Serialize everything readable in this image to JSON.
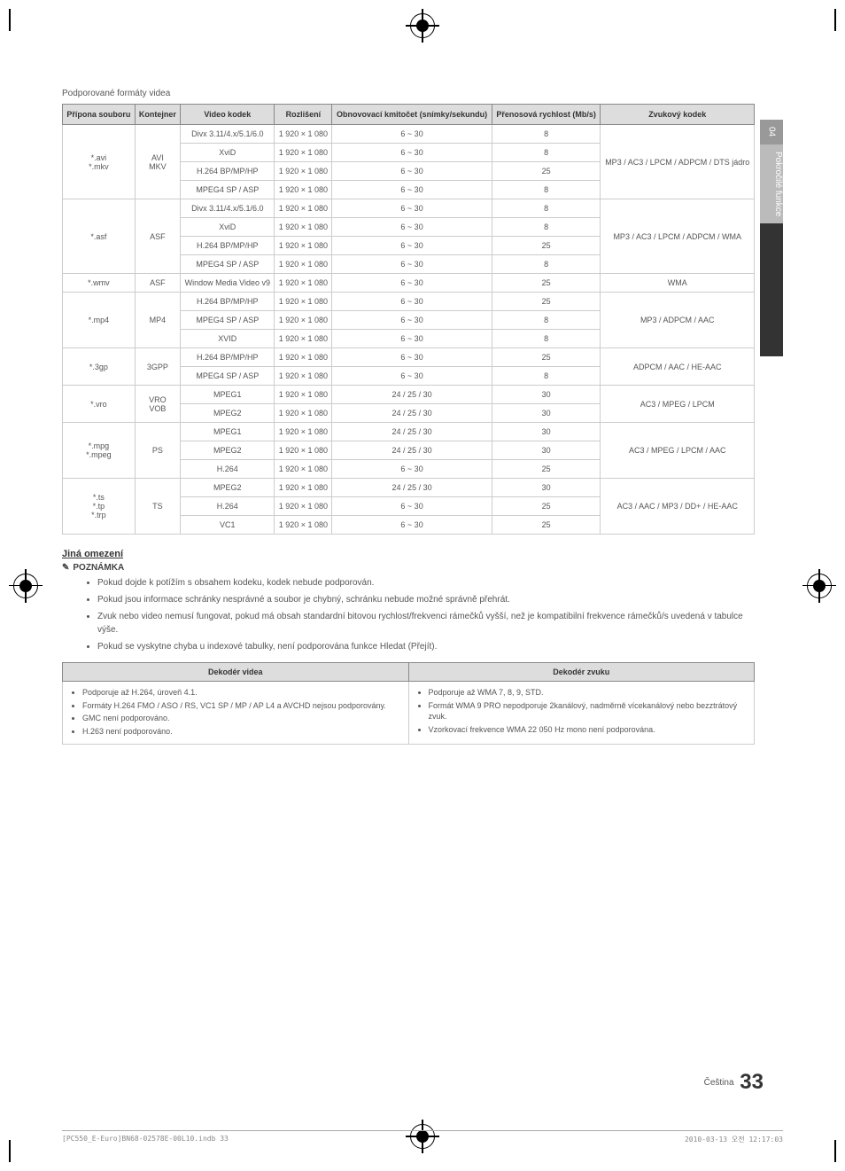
{
  "sideTab": {
    "num": "04",
    "label": "Pokročilé funkce"
  },
  "caption": "Podporované formáty videa",
  "headers": {
    "ext": "Přípona souboru",
    "container": "Kontejner",
    "vcodec": "Video kodek",
    "res": "Rozlišení",
    "fps": "Obnovovací kmitočet (snímky/sekundu)",
    "bitrate": "Přenosová rychlost (Mb/s)",
    "acodec": "Zvukový kodek"
  },
  "groups": [
    {
      "ext": "*.avi\n*.mkv",
      "container": "AVI\nMKV",
      "acodec": "MP3 / AC3 / LPCM / ADPCM / DTS jádro",
      "rows": [
        {
          "v": "Divx 3.11/4.x/5.1/6.0",
          "r": "1 920 × 1 080",
          "f": "6 ~ 30",
          "b": "8"
        },
        {
          "v": "XviD",
          "r": "1 920 × 1 080",
          "f": "6 ~ 30",
          "b": "8"
        },
        {
          "v": "H.264 BP/MP/HP",
          "r": "1 920 × 1 080",
          "f": "6 ~ 30",
          "b": "25"
        },
        {
          "v": "MPEG4 SP / ASP",
          "r": "1 920 × 1 080",
          "f": "6 ~ 30",
          "b": "8"
        }
      ]
    },
    {
      "ext": "*.asf",
      "container": "ASF",
      "acodec": "MP3 / AC3 / LPCM / ADPCM / WMA",
      "rows": [
        {
          "v": "Divx 3.11/4.x/5.1/6.0",
          "r": "1 920 × 1 080",
          "f": "6 ~ 30",
          "b": "8"
        },
        {
          "v": "XviD",
          "r": "1 920 × 1 080",
          "f": "6 ~ 30",
          "b": "8"
        },
        {
          "v": "H.264 BP/MP/HP",
          "r": "1 920 × 1 080",
          "f": "6 ~ 30",
          "b": "25"
        },
        {
          "v": "MPEG4 SP / ASP",
          "r": "1 920 × 1 080",
          "f": "6 ~ 30",
          "b": "8"
        }
      ]
    },
    {
      "ext": "*.wmv",
      "container": "ASF",
      "acodec": "WMA",
      "rows": [
        {
          "v": "Window Media Video v9",
          "r": "1 920 × 1 080",
          "f": "6 ~ 30",
          "b": "25"
        }
      ]
    },
    {
      "ext": "*.mp4",
      "container": "MP4",
      "acodec": "MP3 / ADPCM / AAC",
      "rows": [
        {
          "v": "H.264 BP/MP/HP",
          "r": "1 920 × 1 080",
          "f": "6 ~ 30",
          "b": "25"
        },
        {
          "v": "MPEG4 SP / ASP",
          "r": "1 920 × 1 080",
          "f": "6 ~ 30",
          "b": "8"
        },
        {
          "v": "XVID",
          "r": "1 920 × 1 080",
          "f": "6 ~ 30",
          "b": "8"
        }
      ]
    },
    {
      "ext": "*.3gp",
      "container": "3GPP",
      "acodec": "ADPCM / AAC / HE-AAC",
      "rows": [
        {
          "v": "H.264 BP/MP/HP",
          "r": "1 920 × 1 080",
          "f": "6 ~ 30",
          "b": "25"
        },
        {
          "v": "MPEG4 SP / ASP",
          "r": "1 920 × 1 080",
          "f": "6 ~ 30",
          "b": "8"
        }
      ]
    },
    {
      "ext": "*.vro",
      "container": "VRO\nVOB",
      "acodec": "AC3 / MPEG / LPCM",
      "rows": [
        {
          "v": "MPEG1",
          "r": "1 920 × 1 080",
          "f": "24 / 25 / 30",
          "b": "30"
        },
        {
          "v": "MPEG2",
          "r": "1 920 × 1 080",
          "f": "24 / 25 / 30",
          "b": "30"
        }
      ]
    },
    {
      "ext": "*.mpg\n*.mpeg",
      "container": "PS",
      "acodec": "AC3 / MPEG / LPCM / AAC",
      "rows": [
        {
          "v": "MPEG1",
          "r": "1 920 × 1 080",
          "f": "24 / 25 / 30",
          "b": "30"
        },
        {
          "v": "MPEG2",
          "r": "1 920 × 1 080",
          "f": "24 / 25 / 30",
          "b": "30"
        },
        {
          "v": "H.264",
          "r": "1 920 × 1 080",
          "f": "6 ~ 30",
          "b": "25"
        }
      ]
    },
    {
      "ext": "*.ts\n*.tp\n*.trp",
      "container": "TS",
      "acodec": "AC3 / AAC / MP3 / DD+ / HE-AAC",
      "rows": [
        {
          "v": "MPEG2",
          "r": "1 920 × 1 080",
          "f": "24 / 25 / 30",
          "b": "30"
        },
        {
          "v": "H.264",
          "r": "1 920 × 1 080",
          "f": "6 ~ 30",
          "b": "25"
        },
        {
          "v": "VC1",
          "r": "1 920 × 1 080",
          "f": "6 ~ 30",
          "b": "25"
        }
      ]
    }
  ],
  "limits": {
    "heading": "Jiná omezení",
    "noteLabel": "POZNÁMKA",
    "notes": [
      "Pokud dojde k potížím s obsahem kodeku, kodek nebude podporován.",
      "Pokud jsou informace schránky nesprávné a soubor je chybný, schránku nebude možné správně přehrát.",
      "Zvuk nebo video nemusí fungovat, pokud má obsah standardní bitovou rychlost/frekvenci rámečků vyšší, než je kompatibilní frekvence rámečků/s uvedená v tabulce výše.",
      "Pokud se vyskytne chyba u indexové tabulky, není podporována funkce Hledat (Přejít)."
    ]
  },
  "decoder": {
    "vHead": "Dekodér videa",
    "aHead": "Dekodér zvuku",
    "video": [
      "Podporuje až H.264, úroveň 4.1.",
      "Formáty H.264 FMO / ASO / RS, VC1 SP / MP / AP L4 a AVCHD nejsou podporovány.",
      "GMC není podporováno.",
      "H.263 není podporováno."
    ],
    "audio": [
      "Podporuje až WMA 7, 8, 9, STD.",
      "Formát WMA 9 PRO nepodporuje 2kanálový, nadměrně vícekanálový nebo bezztrátový zvuk.",
      "Vzorkovací frekvence WMA 22 050 Hz mono není podporována."
    ]
  },
  "pageLang": "Čeština",
  "pageNum": "33",
  "footer": {
    "left": "[PC550_E-Euro]BN68-02578E-00L10.indb   33",
    "right": "2010-03-13   오전 12:17:03"
  }
}
